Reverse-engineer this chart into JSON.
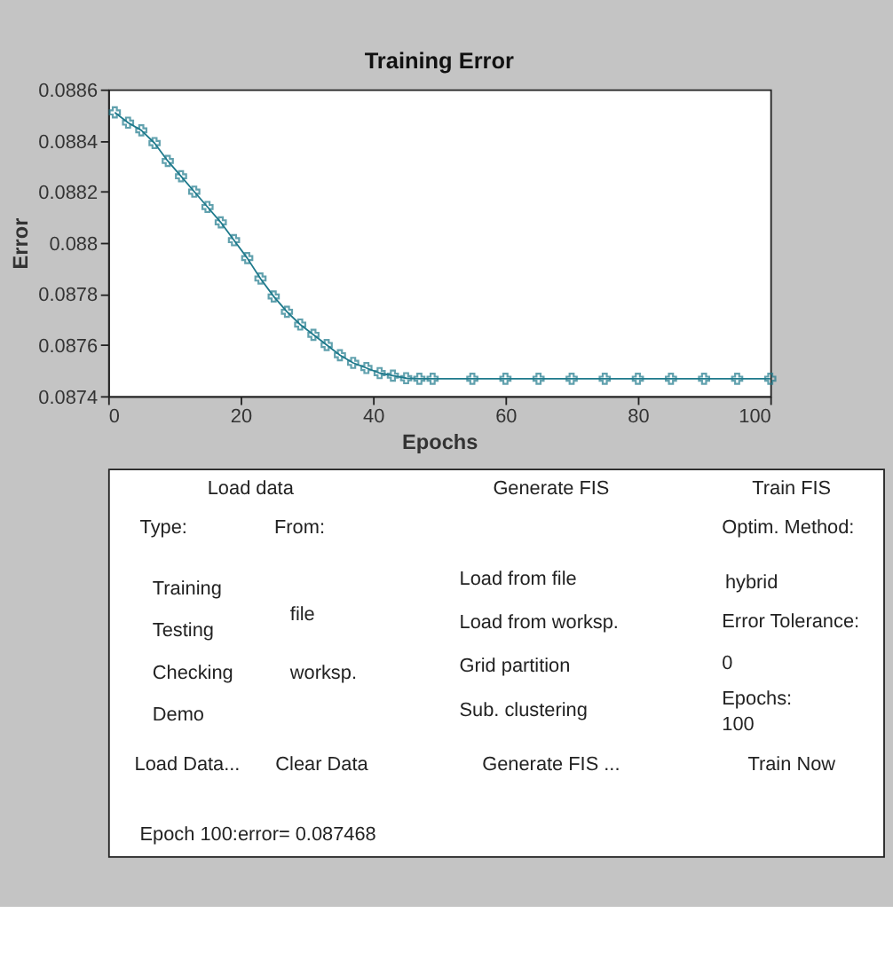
{
  "chart_data": [
    {
      "type": "line",
      "title": "Training Error",
      "xlabel": "Epochs",
      "ylabel": "Error",
      "x": [
        1,
        3,
        5,
        7,
        9,
        11,
        13,
        15,
        17,
        19,
        21,
        23,
        25,
        27,
        29,
        31,
        33,
        35,
        37,
        39,
        41,
        43,
        45,
        47,
        49,
        55,
        60,
        65,
        70,
        75,
        80,
        85,
        90,
        95,
        100
      ],
      "series": [
        {
          "color": "#1f7a8c",
          "values": [
            0.08851,
            0.08847,
            0.08844,
            0.08839,
            0.08832,
            0.08826,
            0.0882,
            0.08814,
            0.08808,
            0.08801,
            0.08794,
            0.08786,
            0.08779,
            0.08773,
            0.08768,
            0.08764,
            0.0876,
            0.08756,
            0.08753,
            0.08751,
            0.08749,
            0.08748,
            0.08747,
            0.087468,
            0.087468,
            0.087468,
            0.087468,
            0.087468,
            0.087468,
            0.087468,
            0.087468,
            0.087468,
            0.087468,
            0.087468,
            0.087468
          ]
        }
      ],
      "xlim": [
        0,
        100
      ],
      "xticks": [
        0,
        20,
        40,
        60,
        80,
        100
      ],
      "ylim": [
        0.0874,
        0.0886
      ],
      "yticks": [
        0.0874,
        0.0876,
        0.0878,
        0.088,
        0.0882,
        0.0884,
        0.0886
      ],
      "marker": "cross",
      "line_style": "solid",
      "grid": false
    },
    {
      "type": "other",
      "annotations": [
        "Load data",
        "Type:",
        "From:",
        "Training",
        "Testing",
        "Checking",
        "Demo",
        "file",
        "worksp.",
        "Load Data...",
        "Clear Data",
        "Generate FIS",
        "Load from file",
        "Load from worksp.",
        "Grid partition",
        "Sub. clustering",
        "Generate FIS ...",
        "Train FIS",
        "Optim. Method:",
        "hybrid",
        "Error Tolerance:",
        "0",
        "Epochs:",
        "100",
        "Train Now",
        "Epoch 100:error= 0.087468"
      ]
    }
  ]
}
